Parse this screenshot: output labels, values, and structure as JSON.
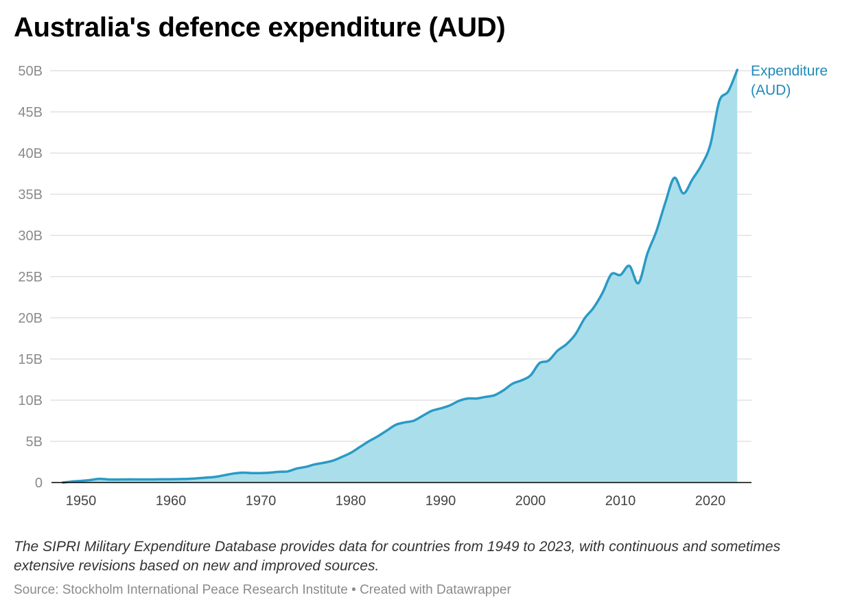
{
  "chart_data": {
    "type": "area",
    "title": "Australia's defence expenditure (AUD)",
    "xlabel": "",
    "ylabel": "",
    "xlim": [
      1948,
      2023
    ],
    "ylim": [
      0,
      50
    ],
    "y_unit": "billion AUD",
    "x_ticks": [
      1950,
      1960,
      1970,
      1980,
      1990,
      2000,
      2010,
      2020
    ],
    "y_ticks": [
      {
        "value": 0,
        "label": "0"
      },
      {
        "value": 5,
        "label": "5B"
      },
      {
        "value": 10,
        "label": "10B"
      },
      {
        "value": 15,
        "label": "15B"
      },
      {
        "value": 20,
        "label": "20B"
      },
      {
        "value": 25,
        "label": "25B"
      },
      {
        "value": 30,
        "label": "30B"
      },
      {
        "value": 35,
        "label": "35B"
      },
      {
        "value": 40,
        "label": "40B"
      },
      {
        "value": 45,
        "label": "45B"
      },
      {
        "value": 50,
        "label": "50B"
      }
    ],
    "grid": true,
    "series": [
      {
        "name": "Expenditure (AUD)",
        "label_lines": [
          "Expenditure",
          "(AUD)"
        ],
        "line_color": "#2a9ac4",
        "fill_color": "#abdeeb",
        "label_color": "#1f8ab5",
        "x": [
          1948,
          1949,
          1950,
          1951,
          1952,
          1953,
          1954,
          1955,
          1956,
          1957,
          1958,
          1959,
          1960,
          1961,
          1962,
          1963,
          1964,
          1965,
          1966,
          1967,
          1968,
          1969,
          1970,
          1971,
          1972,
          1973,
          1974,
          1975,
          1976,
          1977,
          1978,
          1979,
          1980,
          1981,
          1982,
          1983,
          1984,
          1985,
          1986,
          1987,
          1988,
          1989,
          1990,
          1991,
          1992,
          1993,
          1994,
          1995,
          1996,
          1997,
          1998,
          1999,
          2000,
          2001,
          2002,
          2003,
          2004,
          2005,
          2006,
          2007,
          2008,
          2009,
          2010,
          2011,
          2012,
          2013,
          2014,
          2015,
          2016,
          2017,
          2018,
          2019,
          2020,
          2021,
          2022,
          2023
        ],
        "values": [
          0.0,
          0.12,
          0.2,
          0.3,
          0.45,
          0.38,
          0.36,
          0.38,
          0.38,
          0.38,
          0.38,
          0.4,
          0.4,
          0.42,
          0.45,
          0.52,
          0.6,
          0.7,
          0.9,
          1.1,
          1.2,
          1.15,
          1.15,
          1.2,
          1.3,
          1.35,
          1.7,
          1.9,
          2.2,
          2.4,
          2.65,
          3.1,
          3.6,
          4.3,
          5.0,
          5.6,
          6.3,
          7.0,
          7.3,
          7.5,
          8.1,
          8.7,
          9.0,
          9.35,
          9.9,
          10.2,
          10.2,
          10.4,
          10.6,
          11.2,
          12.0,
          12.4,
          13.0,
          14.5,
          14.8,
          16.0,
          16.8,
          18.0,
          19.9,
          21.2,
          23.0,
          25.3,
          25.2,
          26.3,
          24.2,
          27.8,
          30.5,
          34.0,
          37.0,
          35.1,
          36.8,
          38.5,
          41.0,
          46.3,
          47.5,
          50.1
        ]
      }
    ],
    "notes": "The SIPRI Military Expenditure Database provides data for countries from 1949 to 2023, with continuous and sometimes extensive revisions based on new and improved sources.",
    "source": "Source: Stockholm International Peace Research Institute • Created with Datawrapper"
  }
}
